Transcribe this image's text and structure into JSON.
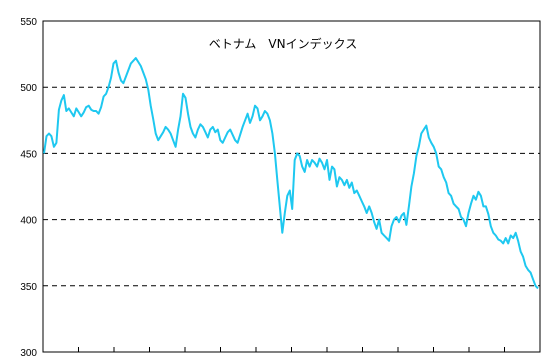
{
  "chart_data": {
    "type": "line",
    "title": "ベトナム　VNインデックス",
    "xlabel": "",
    "ylabel": "",
    "ylim": [
      300,
      550
    ],
    "yticks": [
      300,
      350,
      400,
      450,
      500,
      550
    ],
    "grid": "horizontal-dashed",
    "legend": "none",
    "series": [
      {
        "color": "#1EC8F0",
        "values": [
          450,
          463,
          465,
          463,
          455,
          458,
          483,
          490,
          494,
          482,
          484,
          481,
          478,
          484,
          481,
          478,
          481,
          485,
          486,
          483,
          482,
          482,
          480,
          485,
          493,
          495,
          500,
          507,
          518,
          520,
          511,
          505,
          503,
          508,
          513,
          518,
          520,
          522,
          519,
          516,
          511,
          506,
          498,
          486,
          476,
          465,
          460,
          463,
          466,
          470,
          468,
          465,
          460,
          455,
          468,
          478,
          495,
          492,
          480,
          470,
          465,
          462,
          468,
          472,
          470,
          466,
          462,
          468,
          470,
          466,
          468,
          460,
          458,
          462,
          466,
          468,
          464,
          460,
          458,
          464,
          470,
          475,
          480,
          473,
          478,
          486,
          484,
          475,
          478,
          482,
          480,
          475,
          465,
          450,
          430,
          410,
          390,
          405,
          418,
          422,
          408,
          445,
          450,
          448,
          440,
          436,
          445,
          440,
          445,
          443,
          440,
          446,
          443,
          438,
          445,
          430,
          440,
          438,
          425,
          432,
          430,
          426,
          430,
          424,
          428,
          420,
          422,
          418,
          414,
          410,
          405,
          410,
          405,
          398,
          393,
          400,
          390,
          388,
          386,
          384,
          395,
          400,
          402,
          398,
          403,
          405,
          396,
          410,
          425,
          435,
          448,
          455,
          465,
          468,
          471,
          462,
          458,
          455,
          450,
          440,
          438,
          432,
          428,
          420,
          418,
          412,
          410,
          408,
          402,
          400,
          395,
          405,
          412,
          418,
          415,
          421,
          418,
          410,
          410,
          404,
          395,
          390,
          388,
          385,
          384,
          382,
          386,
          382,
          388,
          386,
          390,
          384,
          376,
          372,
          365,
          362,
          360,
          355,
          350,
          348
        ]
      }
    ]
  }
}
